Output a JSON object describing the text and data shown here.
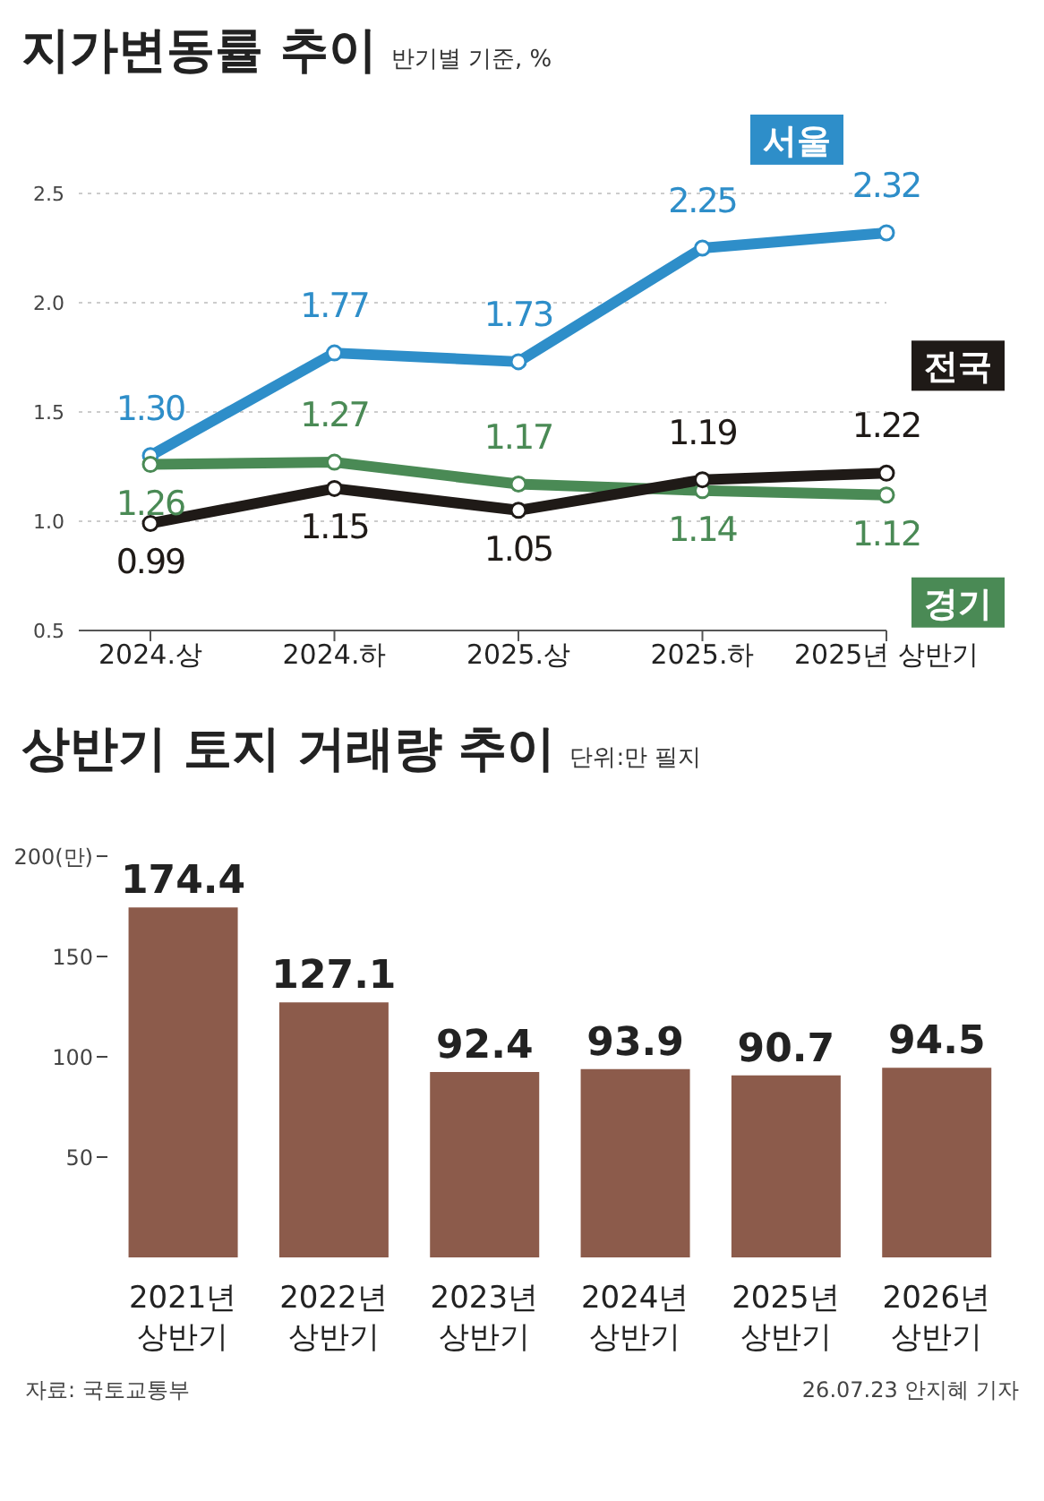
{
  "chart_data": [
    {
      "type": "line",
      "title": "지가변동률 추이",
      "subtitle": "반기별 기준, %",
      "categories": [
        "2024.상",
        "2024.하",
        "2025.상",
        "2025.하",
        "2025년 상반기"
      ],
      "series": [
        {
          "name": "서울",
          "color": "#2e8ec9",
          "values": [
            1.3,
            1.77,
            1.73,
            2.25,
            2.32
          ],
          "value_labels": [
            "1.30",
            "1.77",
            "1.73",
            "2.25",
            "2.32"
          ]
        },
        {
          "name": "경기",
          "color": "#4a8a55",
          "values": [
            1.26,
            1.27,
            1.17,
            1.14,
            1.12
          ],
          "value_labels": [
            "1.26",
            "1.27",
            "1.17",
            "1.14",
            "1.12"
          ]
        },
        {
          "name": "전국",
          "color": "#1f1a17",
          "values": [
            0.99,
            1.15,
            1.05,
            1.19,
            1.22
          ],
          "value_labels": [
            "0.99",
            "1.15",
            "1.05",
            "1.19",
            "1.22"
          ]
        }
      ],
      "ylim": [
        0.5,
        2.5
      ],
      "yticks": [
        {
          "value": 0.5,
          "label": "0.5"
        },
        {
          "value": 1.0,
          "label": "1.0"
        },
        {
          "value": 1.5,
          "label": "1.5"
        },
        {
          "value": 2.0,
          "label": "2.0"
        },
        {
          "value": 2.5,
          "label": "2.5"
        }
      ],
      "grid": "y",
      "legend": false,
      "marker": "circle",
      "line_style": "solid"
    },
    {
      "type": "bar",
      "title": "상반기 토지 거래량 추이",
      "subtitle": "단위:만 필지",
      "categories": [
        "2021년 상반기",
        "2022년 상반기",
        "2023년 상반기",
        "2024년 상반기",
        "2025년 상반기",
        "2026년 상반기"
      ],
      "values": [
        174.4,
        127.1,
        92.4,
        93.9,
        90.7,
        94.5
      ],
      "color": "#8c5b4b",
      "ylim": [
        0,
        200
      ],
      "yticks": [
        50,
        100,
        150,
        {
          "value": 200,
          "label": "200(만)"
        }
      ],
      "grid": false,
      "legend": false,
      "data_labels": true,
      "annotations": [
        "자료: 국토교통부",
        "26.07.23 안지혜 기자"
      ]
    }
  ]
}
